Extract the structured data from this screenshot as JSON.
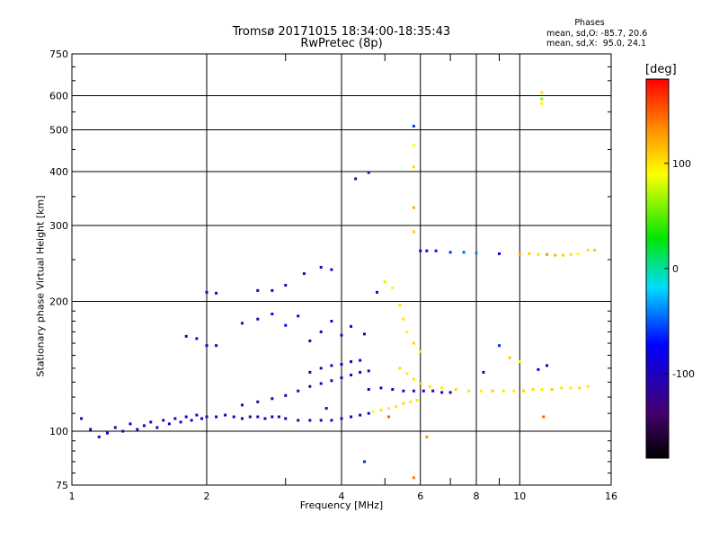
{
  "header": {
    "title_line1": "Tromsø 20171015 18:34:00-18:35:43",
    "title_line2": "RwPretec (8p)",
    "stats_heading": "Phases",
    "stats_o": "mean, sd,O: -85.7, 20.6",
    "stats_x": "mean, sd,X:  95.0, 24.1"
  },
  "chart_data": {
    "type": "scatter",
    "title": "Tromsø 20171015 18:34:00-18:35:43",
    "subtitle": "RwPretec (8p)",
    "xlabel": "Frequency [MHz]",
    "ylabel": "Stationary phase Virtual Height [km]",
    "x_scale": "log",
    "y_scale": "log",
    "xlim": [
      1,
      16
    ],
    "ylim": [
      75,
      750
    ],
    "x_ticks": [
      1,
      2,
      4,
      6,
      8,
      10,
      16
    ],
    "x_tick_labels": [
      "1",
      "2",
      "4",
      "6",
      "8",
      "10",
      "16"
    ],
    "x_grid": [
      2,
      4,
      6,
      8,
      10
    ],
    "x_minor_ticks": [
      3,
      5,
      7,
      9
    ],
    "y_ticks": [
      75,
      100,
      200,
      300,
      400,
      500,
      600,
      750
    ],
    "y_tick_labels": [
      "75",
      "100",
      "200",
      "300",
      "400",
      "500",
      "600",
      "750"
    ],
    "y_grid": [
      100,
      200,
      300,
      400,
      500,
      600
    ],
    "grid": true,
    "colorbar": {
      "label": "[deg]",
      "min": -180,
      "max": 180,
      "ticks": [
        100,
        0,
        -100
      ],
      "tick_labels": [
        "100",
        "0",
        "-100"
      ]
    },
    "series": [
      {
        "name": "Phases",
        "color_by": "phase",
        "points": [
          [
            1.05,
            107,
            -110
          ],
          [
            1.1,
            101,
            -100
          ],
          [
            1.15,
            97,
            -110
          ],
          [
            1.2,
            99,
            -95
          ],
          [
            1.25,
            102,
            -105
          ],
          [
            1.3,
            100,
            -100
          ],
          [
            1.35,
            104,
            -95
          ],
          [
            1.4,
            101,
            -110
          ],
          [
            1.45,
            103,
            -100
          ],
          [
            1.5,
            105,
            -90
          ],
          [
            1.55,
            102,
            -105
          ],
          [
            1.6,
            106,
            -100
          ],
          [
            1.65,
            104,
            -95
          ],
          [
            1.7,
            107,
            -110
          ],
          [
            1.75,
            105,
            -100
          ],
          [
            1.8,
            108,
            -95
          ],
          [
            1.85,
            106,
            -105
          ],
          [
            1.9,
            109,
            -100
          ],
          [
            1.95,
            107,
            -95
          ],
          [
            2.0,
            108,
            -110
          ],
          [
            2.1,
            108,
            -100
          ],
          [
            2.2,
            109,
            -95
          ],
          [
            2.3,
            108,
            -105
          ],
          [
            2.4,
            107,
            -100
          ],
          [
            2.5,
            108,
            -95
          ],
          [
            2.6,
            108,
            -110
          ],
          [
            2.7,
            107,
            -100
          ],
          [
            2.8,
            108,
            -90
          ],
          [
            2.9,
            108,
            -105
          ],
          [
            3.0,
            107,
            -100
          ],
          [
            3.2,
            106,
            -110
          ],
          [
            3.4,
            106,
            -105
          ],
          [
            3.6,
            106,
            -120
          ],
          [
            3.8,
            106,
            -110
          ],
          [
            4.0,
            107,
            -100
          ],
          [
            4.2,
            108,
            -95
          ],
          [
            4.4,
            109,
            -90
          ],
          [
            4.6,
            110,
            -80
          ],
          [
            4.7,
            111,
            90
          ],
          [
            4.9,
            112,
            100
          ],
          [
            5.1,
            113,
            95
          ],
          [
            5.3,
            114,
            100
          ],
          [
            5.5,
            116,
            105
          ],
          [
            5.7,
            117,
            95
          ],
          [
            5.9,
            118,
            100
          ],
          [
            2.4,
            115,
            -100
          ],
          [
            2.6,
            117,
            -110
          ],
          [
            2.8,
            119,
            -105
          ],
          [
            3.0,
            121,
            -100
          ],
          [
            3.2,
            124,
            -110
          ],
          [
            3.4,
            127,
            -105
          ],
          [
            3.6,
            129,
            -100
          ],
          [
            3.8,
            131,
            -110
          ],
          [
            4.0,
            133,
            -100
          ],
          [
            4.2,
            135,
            -95
          ],
          [
            4.4,
            137,
            -100
          ],
          [
            4.6,
            138,
            -90
          ],
          [
            3.4,
            137,
            -105
          ],
          [
            3.6,
            140,
            -110
          ],
          [
            3.8,
            142,
            -100
          ],
          [
            4.0,
            143,
            -95
          ],
          [
            4.2,
            145,
            -100
          ],
          [
            4.4,
            146,
            -90
          ],
          [
            4.6,
            125,
            -100
          ],
          [
            4.9,
            126,
            -110
          ],
          [
            5.2,
            125,
            -100
          ],
          [
            5.5,
            124,
            -95
          ],
          [
            5.8,
            124,
            -105
          ],
          [
            6.1,
            124,
            -100
          ],
          [
            6.4,
            124,
            -110
          ],
          [
            6.7,
            123,
            -100
          ],
          [
            7.0,
            123,
            -95
          ],
          [
            5.4,
            140,
            105
          ],
          [
            5.6,
            136,
            95
          ],
          [
            5.8,
            132,
            100
          ],
          [
            6.0,
            129,
            110
          ],
          [
            6.3,
            127,
            100
          ],
          [
            6.7,
            126,
            95
          ],
          [
            7.2,
            125,
            105
          ],
          [
            7.7,
            124,
            100
          ],
          [
            8.2,
            124,
            95
          ],
          [
            8.7,
            124,
            110
          ],
          [
            9.2,
            124,
            100
          ],
          [
            9.7,
            124,
            95
          ],
          [
            10.2,
            124,
            105
          ],
          [
            10.7,
            125,
            100
          ],
          [
            11.2,
            125,
            95
          ],
          [
            11.8,
            125,
            110
          ],
          [
            12.4,
            126,
            100
          ],
          [
            13.0,
            126,
            95
          ],
          [
            13.6,
            126,
            105
          ],
          [
            14.2,
            127,
            100
          ],
          [
            1.8,
            166,
            -110
          ],
          [
            1.9,
            164,
            -100
          ],
          [
            2.0,
            158,
            -100
          ],
          [
            2.1,
            158,
            -110
          ],
          [
            2.4,
            178,
            -100
          ],
          [
            2.6,
            182,
            -110
          ],
          [
            2.8,
            187,
            -80
          ],
          [
            3.0,
            176,
            -70
          ],
          [
            3.2,
            185,
            -100
          ],
          [
            3.4,
            162,
            -110
          ],
          [
            3.6,
            170,
            -100
          ],
          [
            3.8,
            180,
            -90
          ],
          [
            4.0,
            167,
            -105
          ],
          [
            4.2,
            175,
            -100
          ],
          [
            4.5,
            168,
            -110
          ],
          [
            2.6,
            212,
            -110
          ],
          [
            2.8,
            212,
            -100
          ],
          [
            3.0,
            218,
            -105
          ],
          [
            3.3,
            232,
            -110
          ],
          [
            3.6,
            240,
            -100
          ],
          [
            3.8,
            237,
            -105
          ],
          [
            2.0,
            210,
            -100
          ],
          [
            2.1,
            209,
            -110
          ],
          [
            4.8,
            210,
            -90
          ],
          [
            5.0,
            222,
            80
          ],
          [
            5.2,
            215,
            95
          ],
          [
            5.4,
            196,
            100
          ],
          [
            5.5,
            182,
            100
          ],
          [
            5.6,
            170,
            95
          ],
          [
            5.8,
            160,
            105
          ],
          [
            6.0,
            153,
            100
          ],
          [
            5.8,
            510,
            -60
          ],
          [
            5.8,
            460,
            90
          ],
          [
            5.8,
            410,
            100
          ],
          [
            5.8,
            330,
            120
          ],
          [
            5.8,
            290,
            110
          ],
          [
            4.3,
            385,
            -110
          ],
          [
            4.6,
            398,
            -100
          ],
          [
            6.0,
            262,
            -80
          ],
          [
            6.2,
            262,
            -90
          ],
          [
            6.5,
            262,
            -70
          ],
          [
            7.0,
            260,
            -60
          ],
          [
            7.5,
            260,
            -50
          ],
          [
            8.0,
            259,
            -40
          ],
          [
            9.0,
            258,
            -80
          ],
          [
            10.0,
            257,
            120
          ],
          [
            10.5,
            258,
            110
          ],
          [
            11.0,
            257,
            100
          ],
          [
            11.5,
            257,
            130
          ],
          [
            12.0,
            256,
            120
          ],
          [
            12.5,
            256,
            110
          ],
          [
            13.0,
            257,
            100
          ],
          [
            13.5,
            258,
            90
          ],
          [
            14.2,
            263,
            100
          ],
          [
            14.7,
            263,
            110
          ],
          [
            9.0,
            158,
            -60
          ],
          [
            9.5,
            148,
            110
          ],
          [
            10.0,
            145,
            90
          ],
          [
            11.0,
            139,
            -100
          ],
          [
            11.5,
            142,
            -110
          ],
          [
            8.3,
            137,
            -100
          ],
          [
            11.2,
            610,
            100
          ],
          [
            11.2,
            575,
            95
          ],
          [
            11.2,
            590,
            60
          ],
          [
            5.8,
            78,
            140
          ],
          [
            6.2,
            97,
            130
          ],
          [
            4.5,
            85,
            -60
          ],
          [
            11.3,
            108,
            150
          ],
          [
            5.1,
            108,
            150
          ],
          [
            3.7,
            113,
            -100
          ]
        ]
      }
    ]
  }
}
